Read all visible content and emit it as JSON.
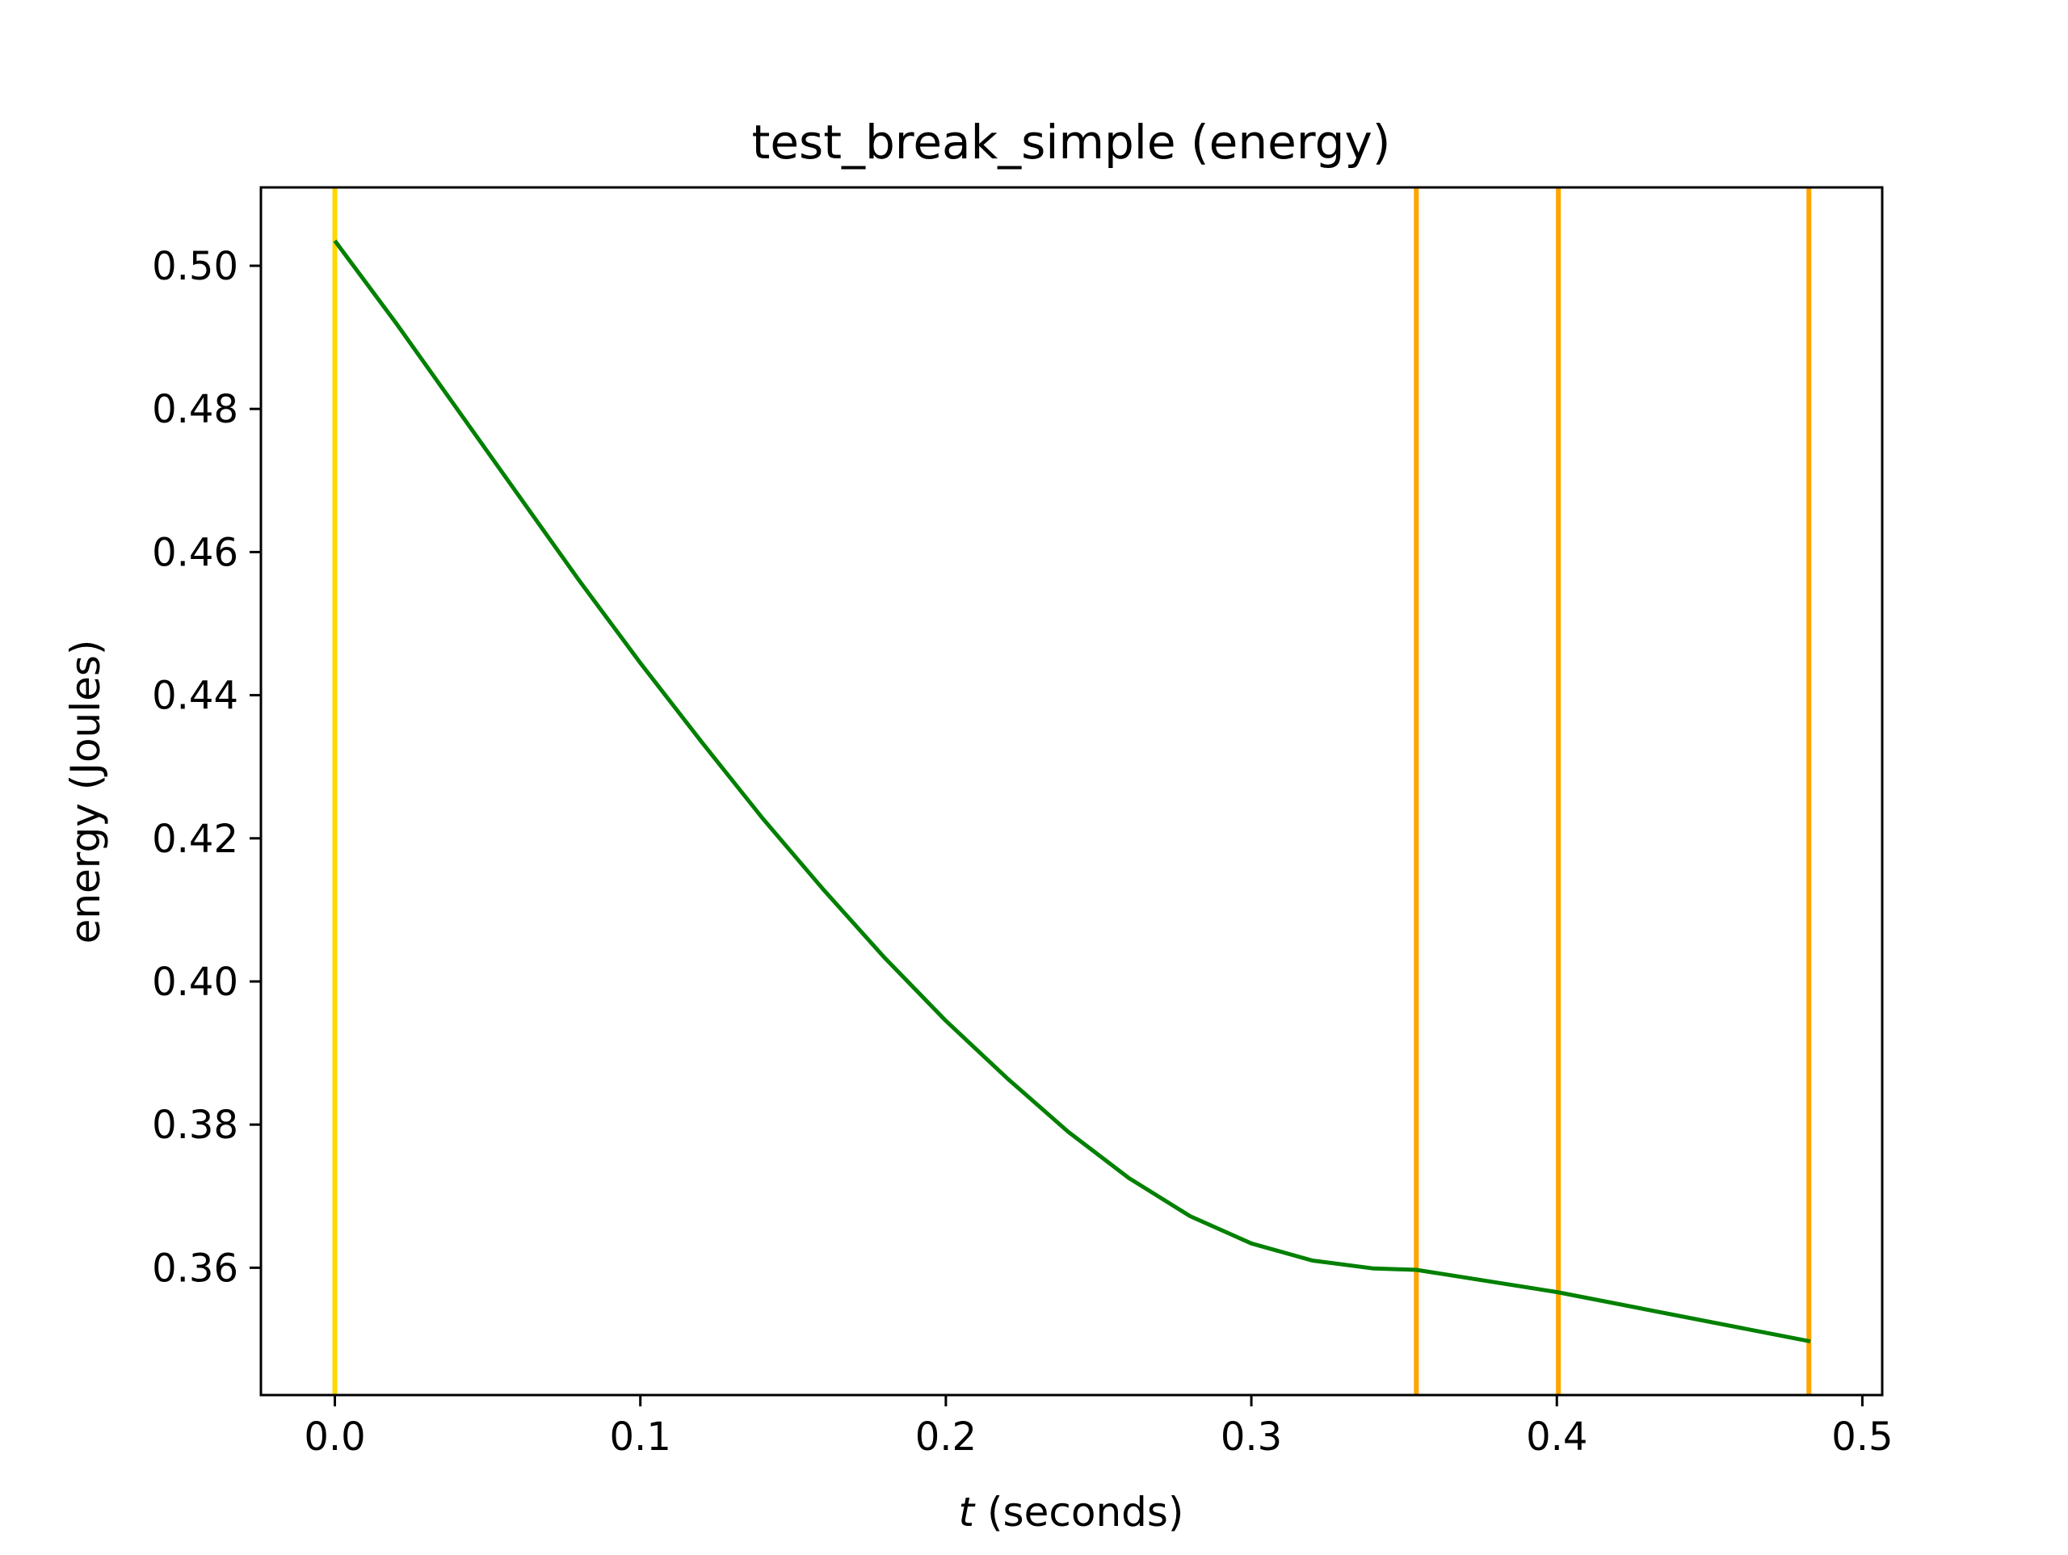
{
  "chart_data": {
    "type": "line",
    "title": "test_break_simple (energy)",
    "xlabel_var": "t",
    "xlabel_rest": " (seconds)",
    "ylabel": "energy (Joules)",
    "xlim": [
      -0.0242,
      0.5065
    ],
    "ylim": [
      0.34221,
      0.51095
    ],
    "x_ticks": [
      0.0,
      0.1,
      0.2,
      0.3,
      0.4,
      0.5
    ],
    "x_tick_labels": [
      "0.0",
      "0.1",
      "0.2",
      "0.3",
      "0.4",
      "0.5"
    ],
    "y_ticks": [
      0.36,
      0.38,
      0.4,
      0.42,
      0.44,
      0.46,
      0.48,
      0.5
    ],
    "y_tick_labels": [
      "0.36",
      "0.38",
      "0.40",
      "0.42",
      "0.44",
      "0.46",
      "0.48",
      "0.50"
    ],
    "grid": false,
    "series": [
      {
        "color": "#008000",
        "x": [
          0.0,
          0.02,
          0.04,
          0.06,
          0.08,
          0.1,
          0.12,
          0.14,
          0.16,
          0.18,
          0.2,
          0.22,
          0.24,
          0.26,
          0.28,
          0.3,
          0.32,
          0.34,
          0.354,
          0.4,
          0.483
        ],
        "y": [
          0.5035,
          0.492,
          0.48,
          0.468,
          0.456,
          0.4445,
          0.4335,
          0.4228,
          0.4128,
          0.4033,
          0.3945,
          0.3865,
          0.379,
          0.3725,
          0.3672,
          0.3634,
          0.361,
          0.3599,
          0.3597,
          0.3566,
          0.3497
        ]
      }
    ],
    "vertical_markers": [
      {
        "x": 0.0,
        "color": "#ffd700"
      },
      {
        "x": 0.354,
        "color": "#ffa500"
      },
      {
        "x": 0.4005,
        "color": "#ffa500"
      },
      {
        "x": 0.4825,
        "color": "#ffa500"
      }
    ]
  }
}
